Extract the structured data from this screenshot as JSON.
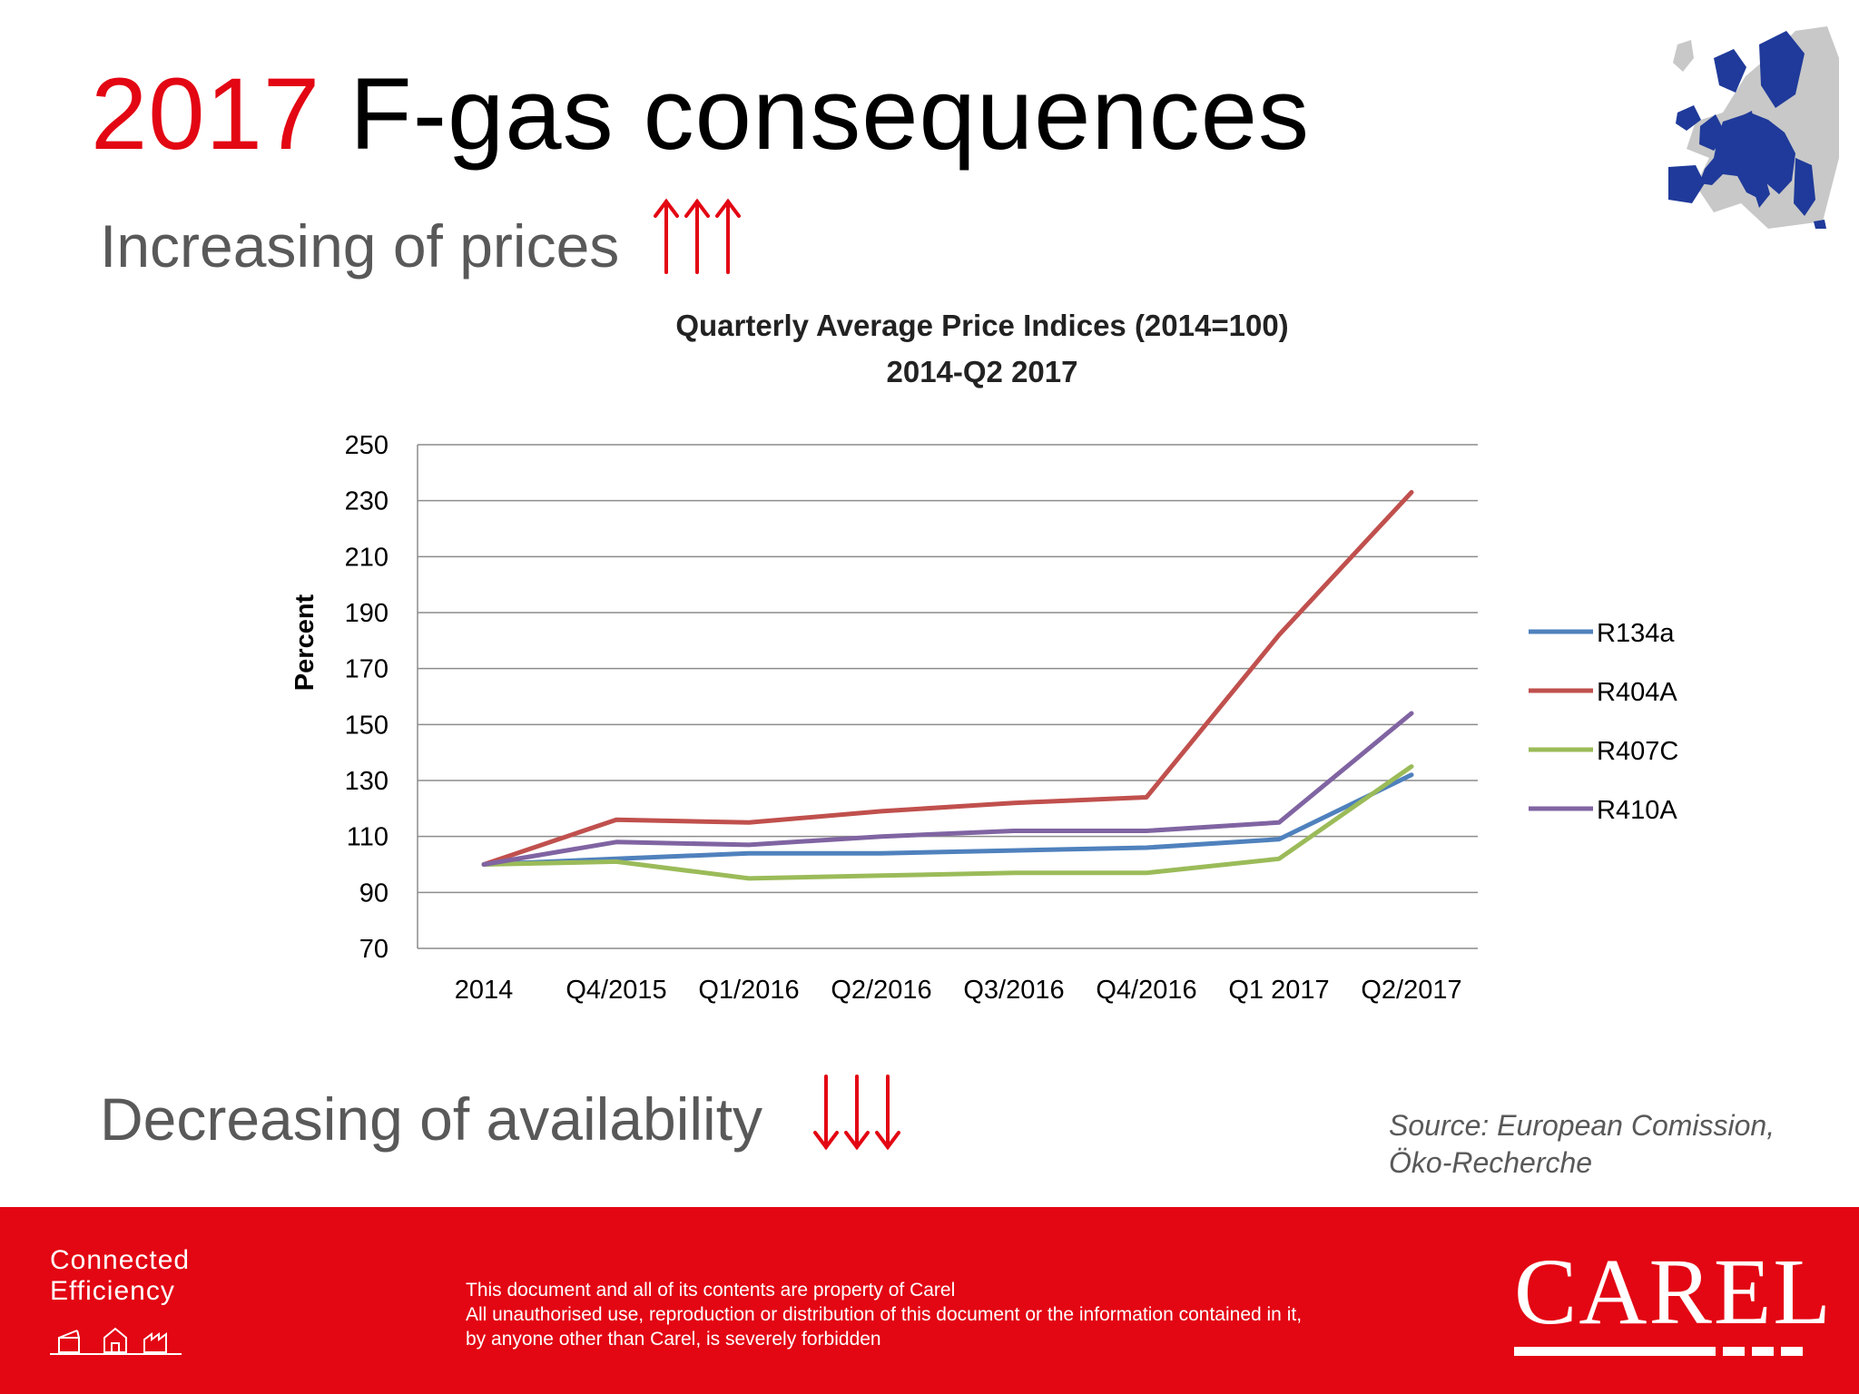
{
  "slide": {
    "title_year": "2017",
    "title_rest": " F-gas consequences",
    "subtitle_prices": "Increasing of prices",
    "subtitle_availability": "Decreasing of availability",
    "source_line1": "Source: European Comission,",
    "source_line2": "Öko-Recherche"
  },
  "footer": {
    "tagline_line1": "Connected",
    "tagline_line2": "Efficiency",
    "legal_line1": "This document and all of its contents are property of Carel",
    "legal_line2": "All unauthorised use, reproduction or distribution of this document or the information contained in it,",
    "legal_line3": "by anyone other than Carel, is severely forbidden",
    "logo_text": "CAREL"
  },
  "icons": {
    "up_arrows": "triple-up-arrow-icon",
    "down_arrows": "triple-down-arrow-icon",
    "map": "europe-map-icon",
    "tagline": "building-icons"
  },
  "colors": {
    "accent": "#e30613",
    "subtitle": "#595959",
    "map_blue": "#1f3a9a"
  },
  "chart_data": {
    "type": "line",
    "title": "Quarterly Average Price Indices (2014=100)",
    "subtitle": "2014-Q2 2017",
    "xlabel": "",
    "ylabel": "Percent",
    "ylim": [
      70,
      250
    ],
    "yticks": [
      70,
      90,
      110,
      130,
      150,
      170,
      190,
      210,
      230,
      250
    ],
    "grid": true,
    "legend_position": "right",
    "categories": [
      "2014",
      "Q4/2015",
      "Q1/2016",
      "Q2/2016",
      "Q3/2016",
      "Q4/2016",
      "Q1 2017",
      "Q2/2017"
    ],
    "series": [
      {
        "name": "R134a",
        "color": "#4f81bd",
        "values": [
          100,
          102,
          104,
          104,
          105,
          106,
          109,
          132
        ]
      },
      {
        "name": "R404A",
        "color": "#c0504d",
        "values": [
          100,
          116,
          115,
          119,
          122,
          124,
          182,
          233
        ]
      },
      {
        "name": "R407C",
        "color": "#9bbb59",
        "values": [
          100,
          101,
          95,
          96,
          97,
          97,
          102,
          135
        ]
      },
      {
        "name": "R410A",
        "color": "#8064a2",
        "values": [
          100,
          108,
          107,
          110,
          112,
          112,
          115,
          154
        ]
      }
    ]
  }
}
